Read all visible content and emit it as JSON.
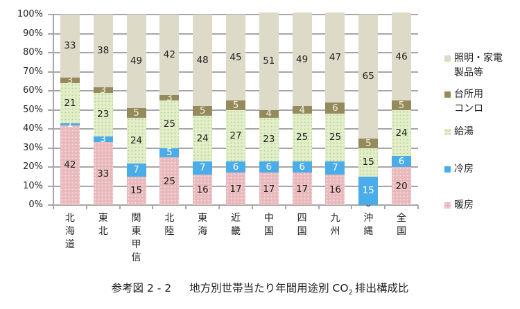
{
  "chart_data": {
    "type": "bar",
    "stacked": true,
    "percent": true,
    "title": "参考図 2 - 2　地方別世帯当たり年間用途別 CO₂ 排出構成比",
    "xlabel": "",
    "ylabel": "",
    "ylim": [
      0,
      100
    ],
    "yticks": [
      "0%",
      "10%",
      "20%",
      "30%",
      "40%",
      "50%",
      "60%",
      "70%",
      "80%",
      "90%",
      "100%"
    ],
    "grid": true,
    "legend_position": "right",
    "categories": [
      "北海道",
      "東北",
      "関東甲信",
      "北陸",
      "東海",
      "近畿",
      "中国",
      "四国",
      "九州",
      "沖縄",
      "全国"
    ],
    "series": [
      {
        "name": "暖房",
        "color": "#e8b8bb",
        "pattern": "dots",
        "label_color": "#222222",
        "values": [
          42,
          33,
          15,
          25,
          16,
          17,
          17,
          17,
          16,
          0,
          20
        ]
      },
      {
        "name": "冷房",
        "color": "#4aace8",
        "pattern": "solid",
        "label_color": "#ffffff",
        "values": [
          1,
          3,
          7,
          5,
          7,
          6,
          6,
          6,
          7,
          15,
          6
        ]
      },
      {
        "name": "給湯",
        "color": "#e3eecb",
        "pattern": "dots",
        "label_color": "#222222",
        "values": [
          21,
          23,
          24,
          25,
          24,
          27,
          23,
          25,
          25,
          15,
          24
        ]
      },
      {
        "name": "台所用コンロ",
        "color": "#948a5c",
        "pattern": "solid",
        "label_color": "#f2eedd",
        "values": [
          3,
          3,
          5,
          3,
          5,
          5,
          4,
          4,
          6,
          5,
          5
        ]
      },
      {
        "name": "照明・家電製品等",
        "color": "#dddac8",
        "pattern": "solid",
        "label_color": "#222222",
        "values": [
          33,
          38,
          49,
          42,
          48,
          45,
          51,
          49,
          47,
          65,
          46
        ]
      }
    ]
  },
  "legend": {
    "items": [
      {
        "lines": [
          "照明・家電",
          "製品等"
        ],
        "color": "#dddac8",
        "pattern": "solid"
      },
      {
        "lines": [
          "台所用",
          "コンロ"
        ],
        "color": "#948a5c",
        "pattern": "solid"
      },
      {
        "lines": [
          "給湯"
        ],
        "color": "#e3eecb",
        "pattern": "dots"
      },
      {
        "lines": [
          "冷房"
        ],
        "color": "#4aace8",
        "pattern": "solid"
      },
      {
        "lines": [
          "暖房"
        ],
        "color": "#e8b8bb",
        "pattern": "dots"
      }
    ]
  },
  "caption": {
    "prefix": "参考図 2 - 2",
    "text": "地方別世帯当たり年間用途別 CO",
    "subscript": "2",
    "suffix": "排出構成比"
  }
}
